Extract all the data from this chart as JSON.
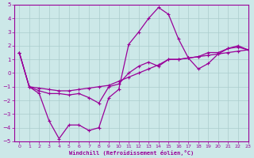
{
  "xlabel": "Windchill (Refroidissement éolien,°C)",
  "xlim": [
    -0.5,
    23
  ],
  "ylim": [
    -5,
    5
  ],
  "xticks": [
    0,
    1,
    2,
    3,
    4,
    5,
    6,
    7,
    8,
    9,
    10,
    11,
    12,
    13,
    14,
    15,
    16,
    17,
    18,
    19,
    20,
    21,
    22,
    23
  ],
  "yticks": [
    -5,
    -4,
    -3,
    -2,
    -1,
    0,
    1,
    2,
    3,
    4,
    5
  ],
  "bg_color": "#cce8e8",
  "line_color": "#990099",
  "grid_color": "#aacccc",
  "line1_x": [
    0,
    1,
    2,
    3,
    4,
    5,
    6,
    7,
    8,
    9,
    10,
    11,
    12,
    13,
    14,
    15,
    16,
    17,
    18,
    19,
    20,
    21,
    22,
    23
  ],
  "line1_y": [
    1.5,
    -1.0,
    -1.5,
    -3.5,
    -4.8,
    -3.8,
    -3.8,
    -4.2,
    -4.0,
    -1.8,
    -1.2,
    2.1,
    3.0,
    4.0,
    4.8,
    4.3,
    2.5,
    1.1,
    0.3,
    0.7,
    1.4,
    1.8,
    2.0,
    1.7
  ],
  "line2_x": [
    0,
    1,
    2,
    3,
    4,
    5,
    6,
    7,
    8,
    9,
    10,
    11,
    12,
    13,
    14,
    15,
    16,
    17,
    18,
    19,
    20,
    21,
    22,
    23
  ],
  "line2_y": [
    1.5,
    -1.0,
    -1.1,
    -1.2,
    -1.3,
    -1.3,
    -1.2,
    -1.1,
    -1.0,
    -0.9,
    -0.6,
    -0.3,
    0.0,
    0.3,
    0.6,
    1.0,
    1.0,
    1.1,
    1.2,
    1.3,
    1.4,
    1.5,
    1.6,
    1.7
  ],
  "line3_x": [
    0,
    1,
    2,
    3,
    4,
    5,
    6,
    7,
    8,
    9,
    10,
    11,
    12,
    13,
    14,
    15,
    16,
    17,
    18,
    19,
    20,
    21,
    22,
    23
  ],
  "line3_y": [
    1.5,
    -1.0,
    -1.3,
    -1.5,
    -1.5,
    -1.6,
    -1.5,
    -1.8,
    -2.2,
    -1.0,
    -0.8,
    0.0,
    0.5,
    0.8,
    0.5,
    1.0,
    1.0,
    1.1,
    1.2,
    1.5,
    1.5,
    1.8,
    1.9,
    1.7
  ]
}
